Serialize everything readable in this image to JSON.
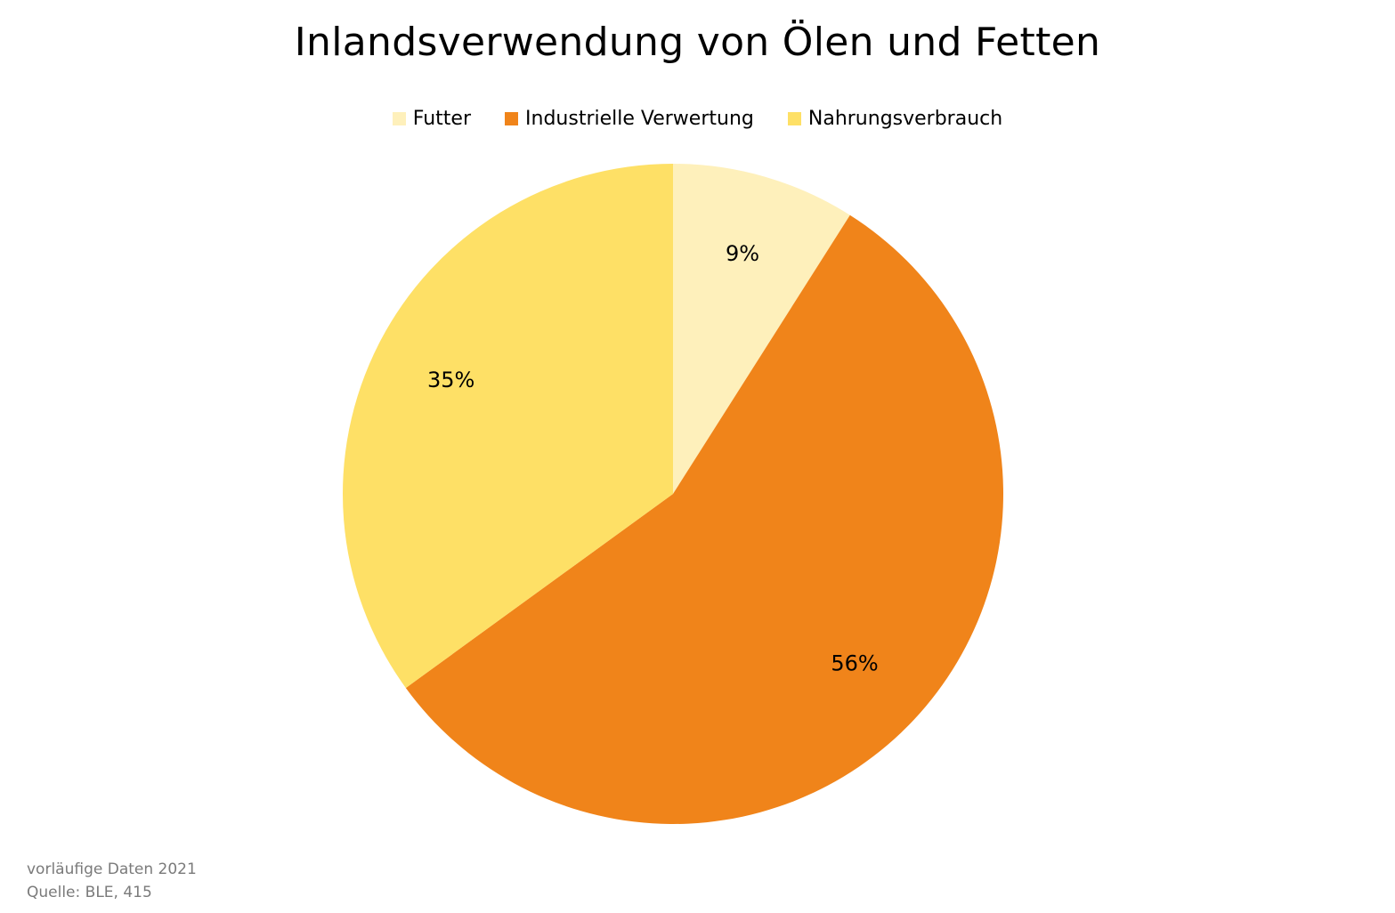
{
  "chart_data": {
    "type": "pie",
    "title": "Inlandsverwendung von Ölen und Fetten",
    "legend_position": "top",
    "slices": [
      {
        "label": "Futter",
        "value": 9,
        "display": "9%",
        "color": "#FEF0BB"
      },
      {
        "label": "Industrielle Verwertung",
        "value": 56,
        "display": "56%",
        "color": "#F0841A"
      },
      {
        "label": "Nahrungsverbrauch",
        "value": 35,
        "display": "35%",
        "color": "#FEE066"
      }
    ]
  },
  "footnote": {
    "line1": "vorläufige Daten 2021",
    "line2": "Quelle: BLE, 415"
  }
}
